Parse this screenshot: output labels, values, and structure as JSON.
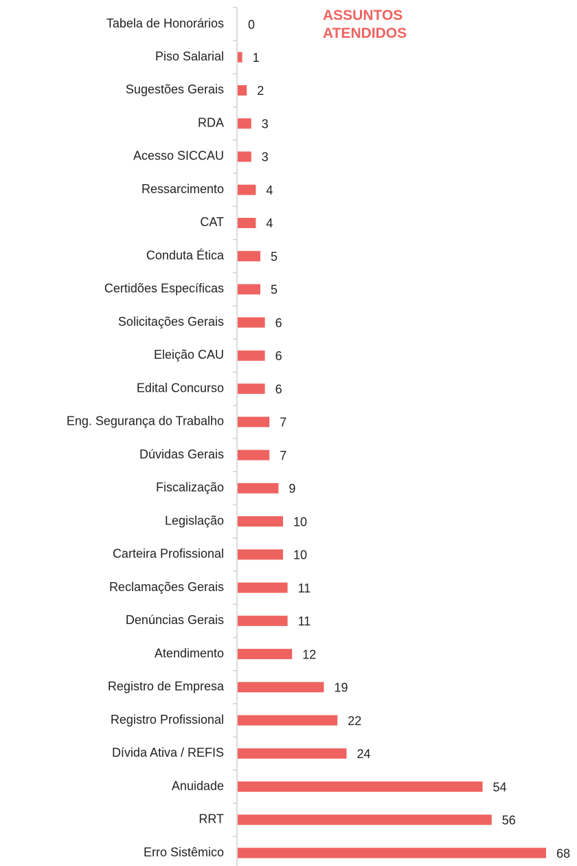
{
  "chart_data": {
    "type": "bar",
    "orientation": "horizontal",
    "title": "ASSUNTOS ATENDIDOS",
    "categories": [
      "Tabela de Honorários",
      "Piso Salarial",
      "Sugestões Gerais",
      "RDA",
      "Acesso SICCAU",
      "Ressarcimento",
      "CAT",
      "Conduta Ética",
      "Certidões Específicas",
      "Solicitações Gerais",
      "Eleição CAU",
      "Edital Concurso",
      "Eng. Segurança do Trabalho",
      "Dúvidas Gerais",
      "Fiscalização",
      "Legislação",
      "Carteira Profissional",
      "Reclamações Gerais",
      "Denúncias Gerais",
      "Atendimento",
      "Registro de Empresa",
      "Registro Profissional",
      "Dívida Ativa / REFIS",
      "Anuidade",
      "RRT",
      "Erro Sistêmico"
    ],
    "values": [
      0,
      1,
      2,
      3,
      3,
      4,
      4,
      5,
      5,
      6,
      6,
      6,
      7,
      7,
      9,
      10,
      10,
      11,
      11,
      12,
      19,
      22,
      24,
      54,
      56,
      68
    ],
    "color": "#ee6360"
  }
}
